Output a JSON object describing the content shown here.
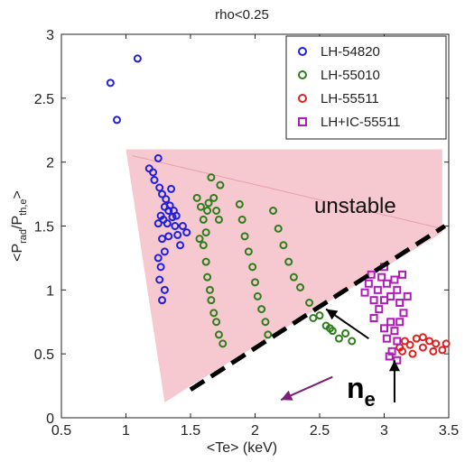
{
  "chart_data": {
    "type": "scatter",
    "title": "rho<0.25",
    "xlabel": "<Te> (keV)",
    "ylabel": "<P_rad/P_th,e>",
    "xlim": [
      0.5,
      3.5
    ],
    "ylim": [
      0,
      3
    ],
    "xticks": [
      "0.5",
      "1",
      "1.5",
      "2",
      "2.5",
      "3",
      "3.5"
    ],
    "yticks": [
      "0",
      "0.5",
      "1",
      "1.5",
      "2",
      "2.5",
      "3"
    ],
    "legend_position": "top-right",
    "series": [
      {
        "name": "LH-54820",
        "color": "#1f1fdc",
        "marker": "circle",
        "points": [
          [
            0.88,
            2.62
          ],
          [
            0.93,
            2.33
          ],
          [
            1.09,
            2.81
          ],
          [
            1.18,
            1.95
          ],
          [
            1.21,
            1.92
          ],
          [
            1.25,
            2.03
          ],
          [
            1.22,
            1.86
          ],
          [
            1.26,
            1.8
          ],
          [
            1.28,
            1.75
          ],
          [
            1.3,
            1.65
          ],
          [
            1.27,
            1.58
          ],
          [
            1.33,
            1.62
          ],
          [
            1.36,
            1.57
          ],
          [
            1.38,
            1.5
          ],
          [
            1.4,
            1.43
          ],
          [
            1.42,
            1.35
          ],
          [
            1.44,
            1.5
          ],
          [
            1.47,
            1.45
          ],
          [
            1.3,
            1.3
          ],
          [
            1.27,
            1.18
          ],
          [
            1.26,
            1.08
          ],
          [
            1.28,
            0.92
          ],
          [
            1.25,
            1.25
          ],
          [
            1.33,
            1.42
          ],
          [
            1.31,
            1.71
          ],
          [
            1.35,
            1.79
          ],
          [
            1.29,
            1.55
          ],
          [
            1.32,
            1.52
          ],
          [
            1.37,
            1.62
          ],
          [
            1.28,
            1.4
          ],
          [
            1.3,
            1.0
          ],
          [
            1.25,
            1.52
          ],
          [
            1.34,
            1.66
          ],
          [
            1.39,
            1.58
          ]
        ]
      },
      {
        "name": "LH-55010",
        "color": "#2e7d1b",
        "marker": "circle",
        "points": [
          [
            1.55,
            1.72
          ],
          [
            1.58,
            1.65
          ],
          [
            1.6,
            1.55
          ],
          [
            1.62,
            1.45
          ],
          [
            1.63,
            1.62
          ],
          [
            1.66,
            1.88
          ],
          [
            1.68,
            1.72
          ],
          [
            1.7,
            1.62
          ],
          [
            1.72,
            1.55
          ],
          [
            1.6,
            1.35
          ],
          [
            1.62,
            1.22
          ],
          [
            1.63,
            1.1
          ],
          [
            1.65,
            1.0
          ],
          [
            1.66,
            0.92
          ],
          [
            1.68,
            0.82
          ],
          [
            1.7,
            0.75
          ],
          [
            1.72,
            0.65
          ],
          [
            1.75,
            0.58
          ],
          [
            1.57,
            1.4
          ],
          [
            1.64,
            1.68
          ],
          [
            1.73,
            1.82
          ],
          [
            1.88,
            1.67
          ],
          [
            1.9,
            1.55
          ],
          [
            1.92,
            1.42
          ],
          [
            1.95,
            1.3
          ],
          [
            1.98,
            1.18
          ],
          [
            2.0,
            1.06
          ],
          [
            2.02,
            0.95
          ],
          [
            2.05,
            0.85
          ],
          [
            2.08,
            0.75
          ],
          [
            2.1,
            0.65
          ],
          [
            2.14,
            1.62
          ],
          [
            2.18,
            1.48
          ],
          [
            2.22,
            1.35
          ],
          [
            2.26,
            1.22
          ],
          [
            2.3,
            1.1
          ],
          [
            2.35,
            1.02
          ],
          [
            2.42,
            0.9
          ],
          [
            2.5,
            0.8
          ],
          [
            2.55,
            0.72
          ],
          [
            2.6,
            0.68
          ],
          [
            2.65,
            0.62
          ],
          [
            2.7,
            0.66
          ],
          [
            2.75,
            0.6
          ],
          [
            2.58,
            0.7
          ],
          [
            2.45,
            0.78
          ]
        ]
      },
      {
        "name": "LH-55511",
        "color": "#e01f1f",
        "marker": "circle",
        "points": [
          [
            3.12,
            0.55
          ],
          [
            3.16,
            0.6
          ],
          [
            3.2,
            0.57
          ],
          [
            3.25,
            0.62
          ],
          [
            3.3,
            0.55
          ],
          [
            3.35,
            0.6
          ],
          [
            3.4,
            0.58
          ],
          [
            3.45,
            0.53
          ],
          [
            3.48,
            0.58
          ],
          [
            3.22,
            0.5
          ],
          [
            3.3,
            0.63
          ],
          [
            3.38,
            0.52
          ],
          [
            3.14,
            0.52
          ]
        ]
      },
      {
        "name": "LH+IC-55511",
        "color": "#b01cb8",
        "marker": "square",
        "points": [
          [
            2.85,
            0.98
          ],
          [
            2.88,
            1.05
          ],
          [
            2.9,
            1.12
          ],
          [
            2.92,
            0.92
          ],
          [
            2.95,
            1.0
          ],
          [
            2.98,
            1.1
          ],
          [
            3.0,
            1.18
          ],
          [
            3.02,
            1.05
          ],
          [
            3.05,
            0.95
          ],
          [
            3.08,
            1.08
          ],
          [
            3.1,
            1.0
          ],
          [
            3.12,
            0.9
          ],
          [
            3.15,
            0.82
          ],
          [
            3.05,
            0.75
          ],
          [
            3.02,
            0.62
          ],
          [
            3.06,
            0.52
          ],
          [
            3.1,
            0.6
          ],
          [
            2.96,
            0.85
          ],
          [
            3.14,
            1.12
          ],
          [
            2.92,
            0.78
          ],
          [
            3.0,
            0.7
          ],
          [
            3.04,
            0.48
          ],
          [
            3.1,
            0.45
          ],
          [
            3.08,
            0.68
          ],
          [
            3.18,
            0.95
          ],
          [
            3.12,
            0.75
          ],
          [
            3.0,
            0.92
          ]
        ]
      }
    ],
    "annotations": {
      "region_label": "unstable",
      "arrow_label": "n",
      "arrow_label_sub": "e"
    }
  },
  "colors": {
    "region_fill": "#f6c8cf",
    "boundary_line": "#000000",
    "arrow": "#000000",
    "purple_arrow": "#7a1f7a"
  }
}
